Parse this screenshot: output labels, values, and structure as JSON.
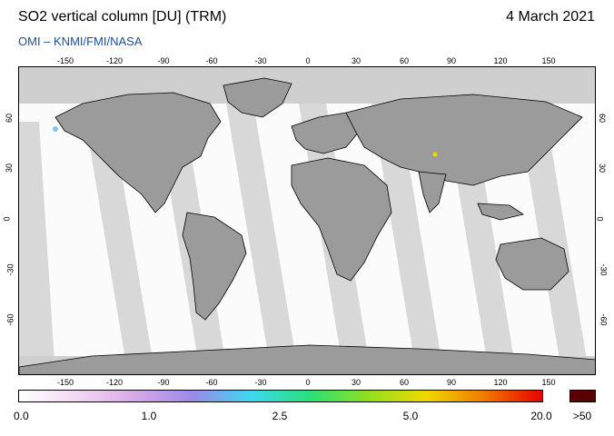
{
  "header": {
    "title": "SO2 vertical column [DU] (TRM)",
    "date": "4 March 2021",
    "credit": "OMI  –  KNMI/FMI/NASA"
  },
  "map": {
    "longitude_ticks": [
      "-150",
      "-120",
      "-90",
      "-60",
      "-30",
      "0",
      "30",
      "60",
      "90",
      "120",
      "150"
    ],
    "latitude_ticks": [
      "60",
      "30",
      "0",
      "-30",
      "-60"
    ],
    "ocean_color": "#fbfbfc",
    "land_color": "#9a9a9a",
    "no_data_color": "#cfcfcf",
    "coastline_color": "#000000"
  },
  "legend": {
    "labels": [
      "0.0",
      "1.0",
      "2.5",
      "5.0",
      "20.0"
    ],
    "overflow_label": ">50",
    "overflow_color": "#5a0000",
    "gradient_stops": [
      "#ffffff",
      "#f2d8f2",
      "#d8a8e8",
      "#9a8ae8",
      "#3ed8f0",
      "#28e07a",
      "#90e020",
      "#f0d800",
      "#f07a00",
      "#e80000"
    ]
  }
}
